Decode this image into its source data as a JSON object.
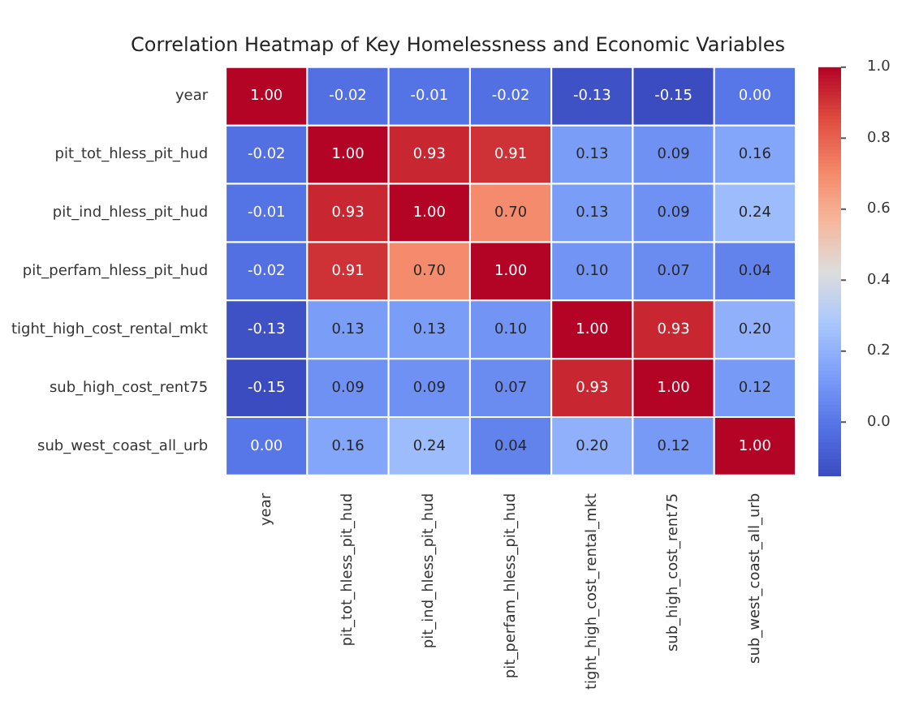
{
  "chart_data": {
    "type": "heatmap",
    "title": "Correlation Heatmap of Key Homelessness and Economic Variables",
    "categories": [
      "year",
      "pit_tot_hless_pit_hud",
      "pit_ind_hless_pit_hud",
      "pit_perfam_hless_pit_hud",
      "tight_high_cost_rental_mkt",
      "sub_high_cost_rent75",
      "sub_west_coast_all_urb"
    ],
    "y_categories": [
      "year",
      "pit_tot_hless_pit_hud",
      "pit_ind_hless_pit_hud",
      "pit_perfam_hless_pit_hud",
      "tight_high_cost_rental_mkt",
      "sub_high_cost_rent75",
      "sub_west_coast_all_urb"
    ],
    "cells": [
      [
        1.0,
        -0.02,
        -0.01,
        -0.02,
        -0.13,
        -0.15,
        0.0
      ],
      [
        -0.02,
        1.0,
        0.93,
        0.91,
        0.13,
        0.09,
        0.16
      ],
      [
        -0.01,
        0.93,
        1.0,
        0.7,
        0.13,
        0.09,
        0.24
      ],
      [
        -0.02,
        0.91,
        0.7,
        1.0,
        0.1,
        0.07,
        0.04
      ],
      [
        -0.13,
        0.13,
        0.13,
        0.1,
        1.0,
        0.93,
        0.2
      ],
      [
        -0.15,
        0.09,
        0.09,
        0.07,
        0.93,
        1.0,
        0.12
      ],
      [
        0.0,
        0.16,
        0.24,
        0.04,
        0.2,
        0.12,
        1.0
      ]
    ],
    "cell_labels": [
      [
        "1.00",
        "-0.02",
        "-0.01",
        "-0.02",
        "-0.13",
        "-0.15",
        "0.00"
      ],
      [
        "-0.02",
        "1.00",
        "0.93",
        "0.91",
        "0.13",
        "0.09",
        "0.16"
      ],
      [
        "-0.01",
        "0.93",
        "1.00",
        "0.70",
        "0.13",
        "0.09",
        "0.24"
      ],
      [
        "-0.02",
        "0.91",
        "0.70",
        "1.00",
        "0.10",
        "0.07",
        "0.04"
      ],
      [
        "-0.13",
        "0.13",
        "0.13",
        "0.10",
        "1.00",
        "0.93",
        "0.20"
      ],
      [
        "-0.15",
        "0.09",
        "0.09",
        "0.07",
        "0.93",
        "1.00",
        "0.12"
      ],
      [
        "0.00",
        "0.16",
        "0.24",
        "0.04",
        "0.20",
        "0.12",
        "1.00"
      ]
    ],
    "clim": [
      -0.15,
      1.0
    ],
    "cticks": [
      {
        "value": 0.0,
        "label": "0.0"
      },
      {
        "value": 0.2,
        "label": "0.2"
      },
      {
        "value": 0.4,
        "label": "0.4"
      },
      {
        "value": 0.6,
        "label": "0.6"
      },
      {
        "value": 0.8,
        "label": "0.8"
      },
      {
        "value": 1.0,
        "label": "1.0"
      }
    ]
  }
}
